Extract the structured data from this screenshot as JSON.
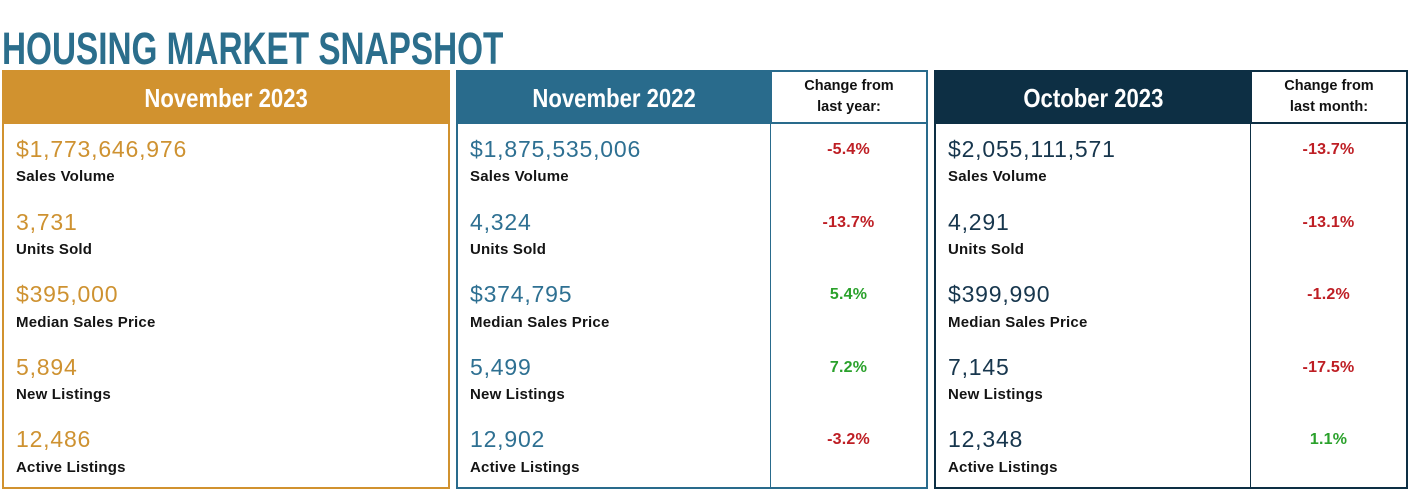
{
  "title": "HOUSING MARKET SNAPSHOT",
  "colors": {
    "title_teal": "#2B6E8C",
    "gold": "#D1922F",
    "teal": "#296B8C",
    "navy": "#0D2F44",
    "positive_green": "#2AA12B",
    "negative_red": "#BE1E24"
  },
  "panels": [
    {
      "header": "November 2023",
      "accent": "#D1922F",
      "value_color": "#CE9231",
      "change_header": null,
      "metrics": [
        {
          "value": "$1,773,646,976",
          "label": "Sales Volume",
          "change": null
        },
        {
          "value": "3,731",
          "label": "Units Sold",
          "change": null
        },
        {
          "value": "$395,000",
          "label": "Median Sales Price",
          "change": null
        },
        {
          "value": "5,894",
          "label": "New Listings",
          "change": null
        },
        {
          "value": "12,486",
          "label": "Active Listings",
          "change": null
        }
      ]
    },
    {
      "header": "November 2022",
      "accent": "#296B8C",
      "value_color": "#2E7092",
      "change_header": "Change from\nlast year:",
      "metrics": [
        {
          "value": "$1,875,535,006",
          "label": "Sales Volume",
          "change": "-5.4%"
        },
        {
          "value": "4,324",
          "label": "Units Sold",
          "change": "-13.7%"
        },
        {
          "value": "$374,795",
          "label": "Median Sales Price",
          "change": "5.4%"
        },
        {
          "value": "5,499",
          "label": "New Listings",
          "change": "7.2%"
        },
        {
          "value": "12,902",
          "label": "Active Listings",
          "change": "-3.2%"
        }
      ]
    },
    {
      "header": "October 2023",
      "accent": "#0D2F44",
      "value_color": "#17364D",
      "change_header": "Change from\nlast month:",
      "metrics": [
        {
          "value": "$2,055,111,571",
          "label": "Sales Volume",
          "change": "-13.7%"
        },
        {
          "value": "4,291",
          "label": "Units Sold",
          "change": "-13.1%"
        },
        {
          "value": "$399,990",
          "label": "Median Sales Price",
          "change": "-1.2%"
        },
        {
          "value": "7,145",
          "label": "New Listings",
          "change": "-17.5%"
        },
        {
          "value": "12,348",
          "label": "Active Listings",
          "change": "1.1%"
        }
      ]
    }
  ],
  "chart_data": {
    "type": "table",
    "title": "HOUSING MARKET SNAPSHOT",
    "row_labels": [
      "Sales Volume",
      "Units Sold",
      "Median Sales Price",
      "New Listings",
      "Active Listings"
    ],
    "columns": [
      {
        "period": "November 2023",
        "values": [
          1773646976,
          3731,
          395000,
          5894,
          12486
        ],
        "display_values": [
          "$1,773,646,976",
          "3,731",
          "$395,000",
          "5,894",
          "12,486"
        ]
      },
      {
        "period": "November 2022",
        "values": [
          1875535006,
          4324,
          374795,
          5499,
          12902
        ],
        "display_values": [
          "$1,875,535,006",
          "4,324",
          "$374,795",
          "5,499",
          "12,902"
        ],
        "change_label": "Change from last year:",
        "changes_pct": [
          -5.4,
          -13.7,
          5.4,
          7.2,
          -3.2
        ]
      },
      {
        "period": "October 2023",
        "values": [
          2055111571,
          4291,
          399990,
          7145,
          12348
        ],
        "display_values": [
          "$2,055,111,571",
          "4,291",
          "$399,990",
          "7,145",
          "12,348"
        ],
        "change_label": "Change from last month:",
        "changes_pct": [
          -13.7,
          -13.1,
          -1.2,
          -17.5,
          1.1
        ]
      }
    ]
  }
}
